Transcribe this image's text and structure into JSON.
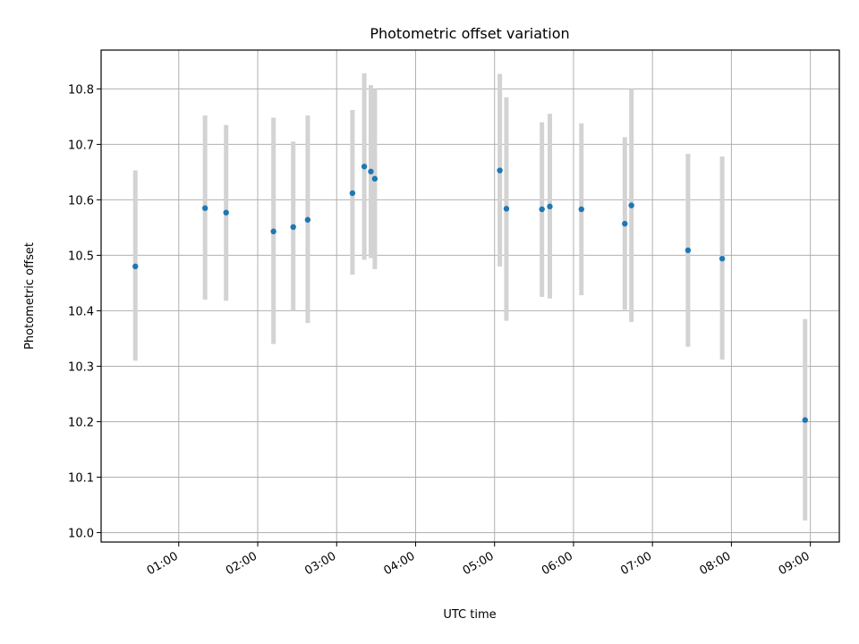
{
  "chart_data": {
    "type": "scatter",
    "title": "Photometric offset variation",
    "xlabel": "UTC time",
    "ylabel": "Photometric offset",
    "x_ticks": [
      "01:00",
      "02:00",
      "03:00",
      "04:00",
      "05:00",
      "06:00",
      "07:00",
      "08:00",
      "09:00"
    ],
    "y_ticks": [
      "10.0",
      "10.1",
      "10.2",
      "10.3",
      "10.4",
      "10.5",
      "10.6",
      "10.7",
      "10.8"
    ],
    "xlim": [
      "00:01",
      "09:22"
    ],
    "ylim": [
      9.983,
      10.87
    ],
    "grid": true,
    "legend": "none",
    "series": [
      {
        "marker_color": "#1f77b4",
        "errorbar_color": "#d3d3d3",
        "points": [
          {
            "x": "00:27",
            "y": 10.48,
            "low": 10.31,
            "high": 10.653
          },
          {
            "x": "01:20",
            "y": 10.585,
            "low": 10.42,
            "high": 10.752
          },
          {
            "x": "01:36",
            "y": 10.577,
            "low": 10.418,
            "high": 10.735
          },
          {
            "x": "02:12",
            "y": 10.543,
            "low": 10.34,
            "high": 10.748
          },
          {
            "x": "02:27",
            "y": 10.551,
            "low": 10.4,
            "high": 10.705
          },
          {
            "x": "02:38",
            "y": 10.564,
            "low": 10.378,
            "high": 10.752
          },
          {
            "x": "03:12",
            "y": 10.612,
            "low": 10.465,
            "high": 10.762
          },
          {
            "x": "03:21",
            "y": 10.66,
            "low": 10.492,
            "high": 10.828
          },
          {
            "x": "03:26",
            "y": 10.651,
            "low": 10.495,
            "high": 10.807
          },
          {
            "x": "03:29",
            "y": 10.638,
            "low": 10.475,
            "high": 10.8
          },
          {
            "x": "05:04",
            "y": 10.653,
            "low": 10.48,
            "high": 10.827
          },
          {
            "x": "05:09",
            "y": 10.584,
            "low": 10.382,
            "high": 10.785
          },
          {
            "x": "05:36",
            "y": 10.583,
            "low": 10.425,
            "high": 10.74
          },
          {
            "x": "05:42",
            "y": 10.588,
            "low": 10.422,
            "high": 10.755
          },
          {
            "x": "06:06",
            "y": 10.583,
            "low": 10.428,
            "high": 10.738
          },
          {
            "x": "06:39",
            "y": 10.557,
            "low": 10.402,
            "high": 10.713
          },
          {
            "x": "06:44",
            "y": 10.59,
            "low": 10.38,
            "high": 10.8
          },
          {
            "x": "07:27",
            "y": 10.509,
            "low": 10.335,
            "high": 10.683
          },
          {
            "x": "07:53",
            "y": 10.494,
            "low": 10.312,
            "high": 10.678
          },
          {
            "x": "08:56",
            "y": 10.203,
            "low": 10.022,
            "high": 10.385
          }
        ]
      }
    ]
  }
}
